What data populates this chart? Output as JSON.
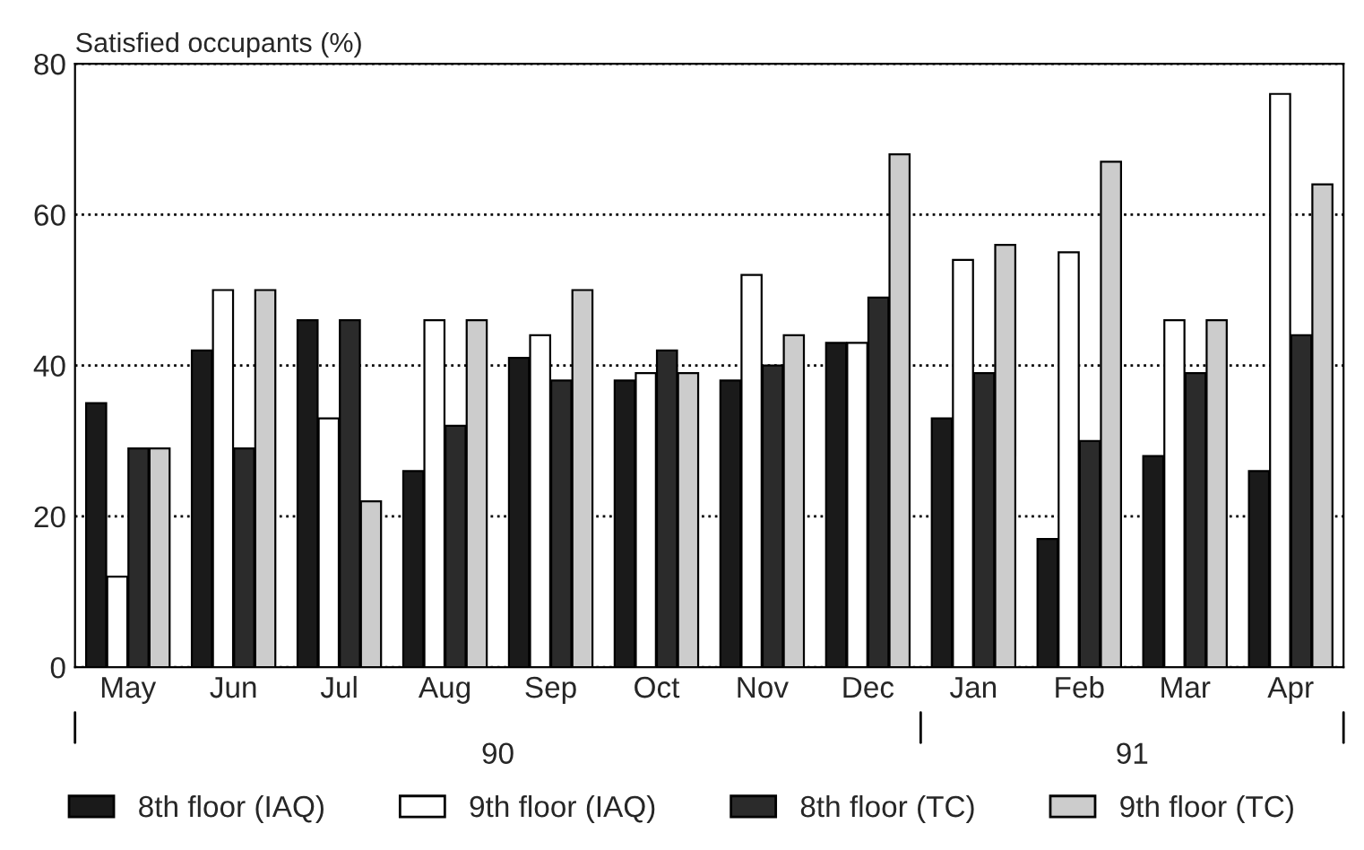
{
  "chart_data": {
    "type": "bar",
    "ylabel": "Satisfied occupants (%)",
    "categories": [
      "May",
      "Jun",
      "Jul",
      "Aug",
      "Sep",
      "Oct",
      "Nov",
      "Dec",
      "Jan",
      "Feb",
      "Mar",
      "Apr"
    ],
    "series": [
      {
        "name": "8th floor (IAQ)",
        "color": "#1a1a1a",
        "values": [
          35,
          42,
          46,
          26,
          41,
          38,
          38,
          43,
          33,
          17,
          28,
          26
        ]
      },
      {
        "name": "9th floor (IAQ)",
        "color": "#ffffff",
        "values": [
          12,
          50,
          33,
          46,
          44,
          39,
          52,
          43,
          54,
          55,
          46,
          76
        ]
      },
      {
        "name": "8th floor (TC)",
        "color": "#2b2b2b",
        "values": [
          29,
          29,
          46,
          32,
          38,
          42,
          40,
          49,
          39,
          30,
          39,
          44
        ]
      },
      {
        "name": "9th floor (TC)",
        "color": "#cccccc",
        "values": [
          29,
          50,
          22,
          46,
          50,
          39,
          44,
          68,
          56,
          67,
          46,
          64
        ]
      }
    ],
    "ylim": [
      0,
      80
    ],
    "yticks": [
      0,
      20,
      40,
      60,
      80
    ],
    "grid": "y",
    "legend": "bottom",
    "annotations": [
      "90",
      "91"
    ]
  }
}
